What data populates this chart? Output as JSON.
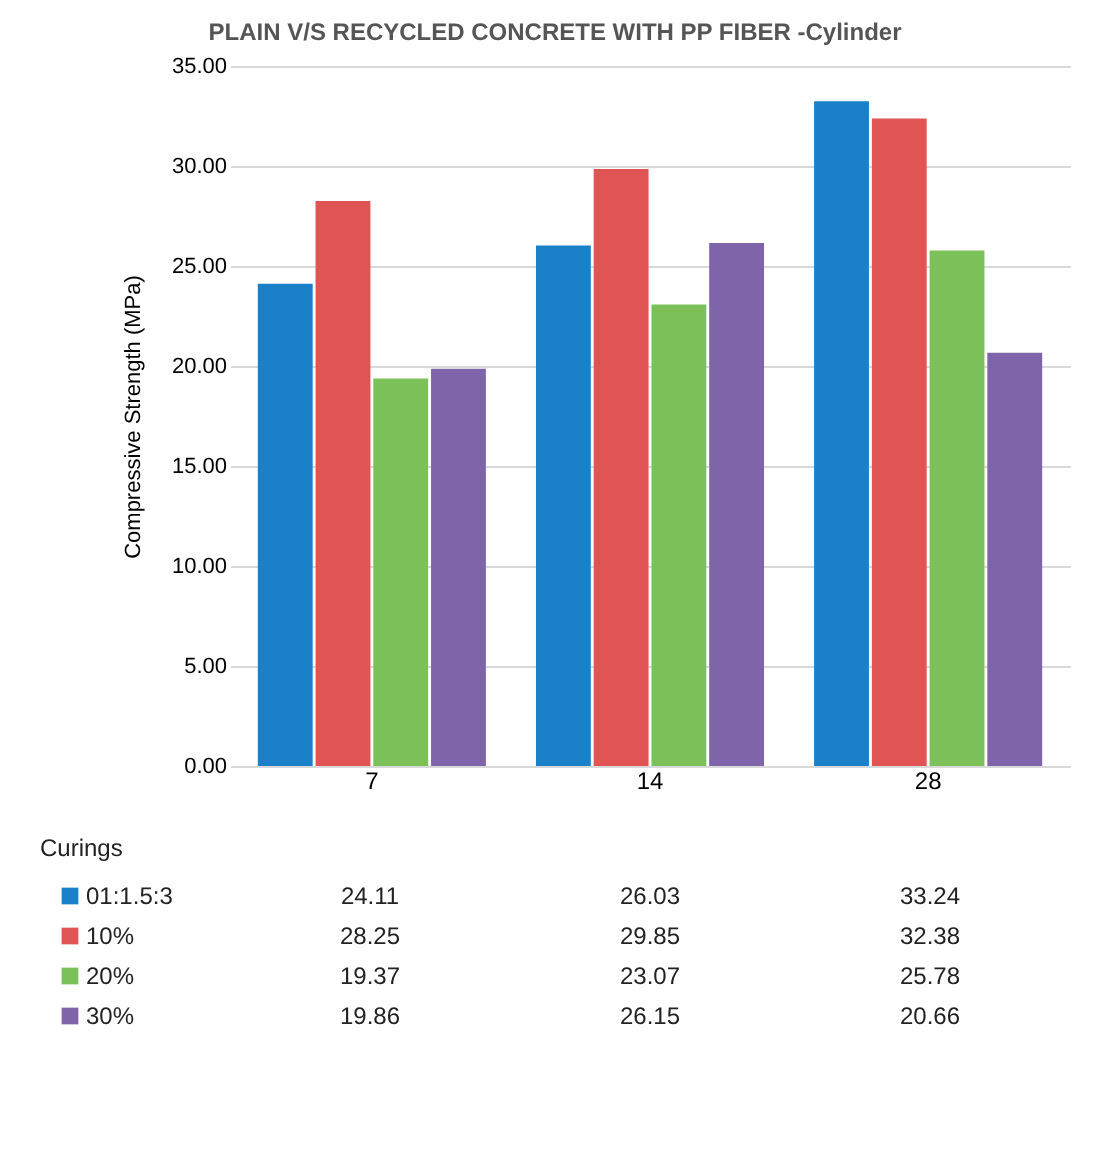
{
  "chart_data": {
    "type": "bar",
    "title": "PLAIN V/S RECYCLED CONCRETE WITH PP FIBER -Cylinder",
    "xlabel": "Curings",
    "ylabel": "Compressive Strength (MPa)",
    "categories": [
      "7",
      "14",
      "28"
    ],
    "series": [
      {
        "name": "01:1.5:3",
        "color": "#1a80c8",
        "values": [
          24.11,
          26.03,
          33.24
        ]
      },
      {
        "name": "10%",
        "color": "#e05454",
        "values": [
          28.25,
          29.85,
          32.38
        ]
      },
      {
        "name": "20%",
        "color": "#7cc05a",
        "values": [
          19.37,
          23.07,
          25.78
        ]
      },
      {
        "name": "30%",
        "color": "#8064aa",
        "values": [
          19.86,
          26.15,
          20.66
        ]
      }
    ],
    "ylim": [
      0,
      35
    ],
    "yticks": [
      {
        "value": 0,
        "label": "0.00"
      },
      {
        "value": 5,
        "label": "5.00"
      },
      {
        "value": 10,
        "label": "10.00"
      },
      {
        "value": 15,
        "label": "15.00"
      },
      {
        "value": 20,
        "label": "20.00"
      },
      {
        "value": 25,
        "label": "25.00"
      },
      {
        "value": 30,
        "label": "30.00"
      },
      {
        "value": 35,
        "label": "35.00"
      }
    ],
    "grid": "y",
    "legend": "bottom",
    "data_labels": true
  }
}
